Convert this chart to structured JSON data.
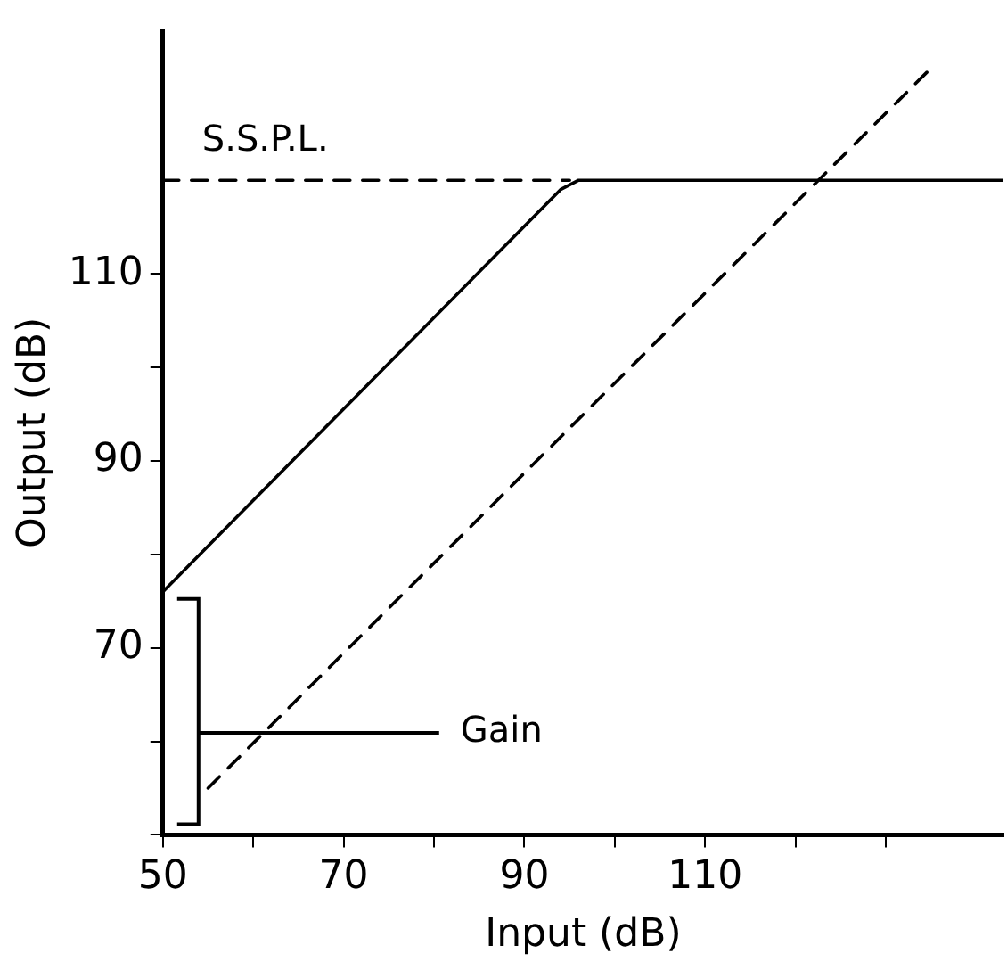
{
  "chart_data": {
    "type": "line",
    "xlabel": "Input (dB)",
    "ylabel": "Output (dB)",
    "xlim": [
      50,
      143
    ],
    "ylim": [
      50,
      136
    ],
    "xticks": [
      50,
      {
        "value": 60,
        "label": null
      },
      70,
      {
        "value": 80,
        "label": null
      },
      90,
      {
        "value": 100,
        "label": null
      },
      110,
      {
        "value": 120,
        "label": null
      },
      {
        "value": 130,
        "label": null
      }
    ],
    "yticks": [
      {
        "value": 50,
        "label": null
      },
      {
        "value": 60,
        "label": null
      },
      70,
      {
        "value": 80,
        "label": null
      },
      90,
      {
        "value": 100,
        "label": null
      },
      110
    ],
    "series": [
      {
        "color": "#000000",
        "line_style": "solid",
        "x": [
          50,
          94,
          96,
          143
        ],
        "values": [
          76,
          119,
          120,
          120
        ]
      },
      {
        "color": "#000000",
        "line_style": "dashed",
        "x": [
          55,
          135
        ],
        "values": [
          55,
          132
        ]
      },
      {
        "color": "#000000",
        "line_style": "dashed",
        "x": [
          50,
          95
        ],
        "values": [
          120,
          120
        ]
      }
    ],
    "annotations": [
      {
        "text": "S.S.P.L.",
        "x": 50,
        "y": 120
      },
      "Gain"
    ],
    "grid": false,
    "legend": false,
    "marker": "none"
  }
}
